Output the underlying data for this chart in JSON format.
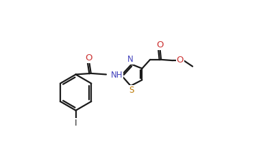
{
  "bg_color": "#ffffff",
  "line_color": "#1a1a1a",
  "atom_colors": {
    "N": "#4040bb",
    "S": "#bb7700",
    "O": "#cc3333",
    "I": "#222222",
    "C": "#1a1a1a"
  },
  "line_width": 1.6,
  "font_size": 8.5,
  "fig_width": 4.0,
  "fig_height": 2.2,
  "dpi": 100,
  "xlim": [
    0,
    10
  ],
  "ylim": [
    -3.5,
    3.5
  ]
}
